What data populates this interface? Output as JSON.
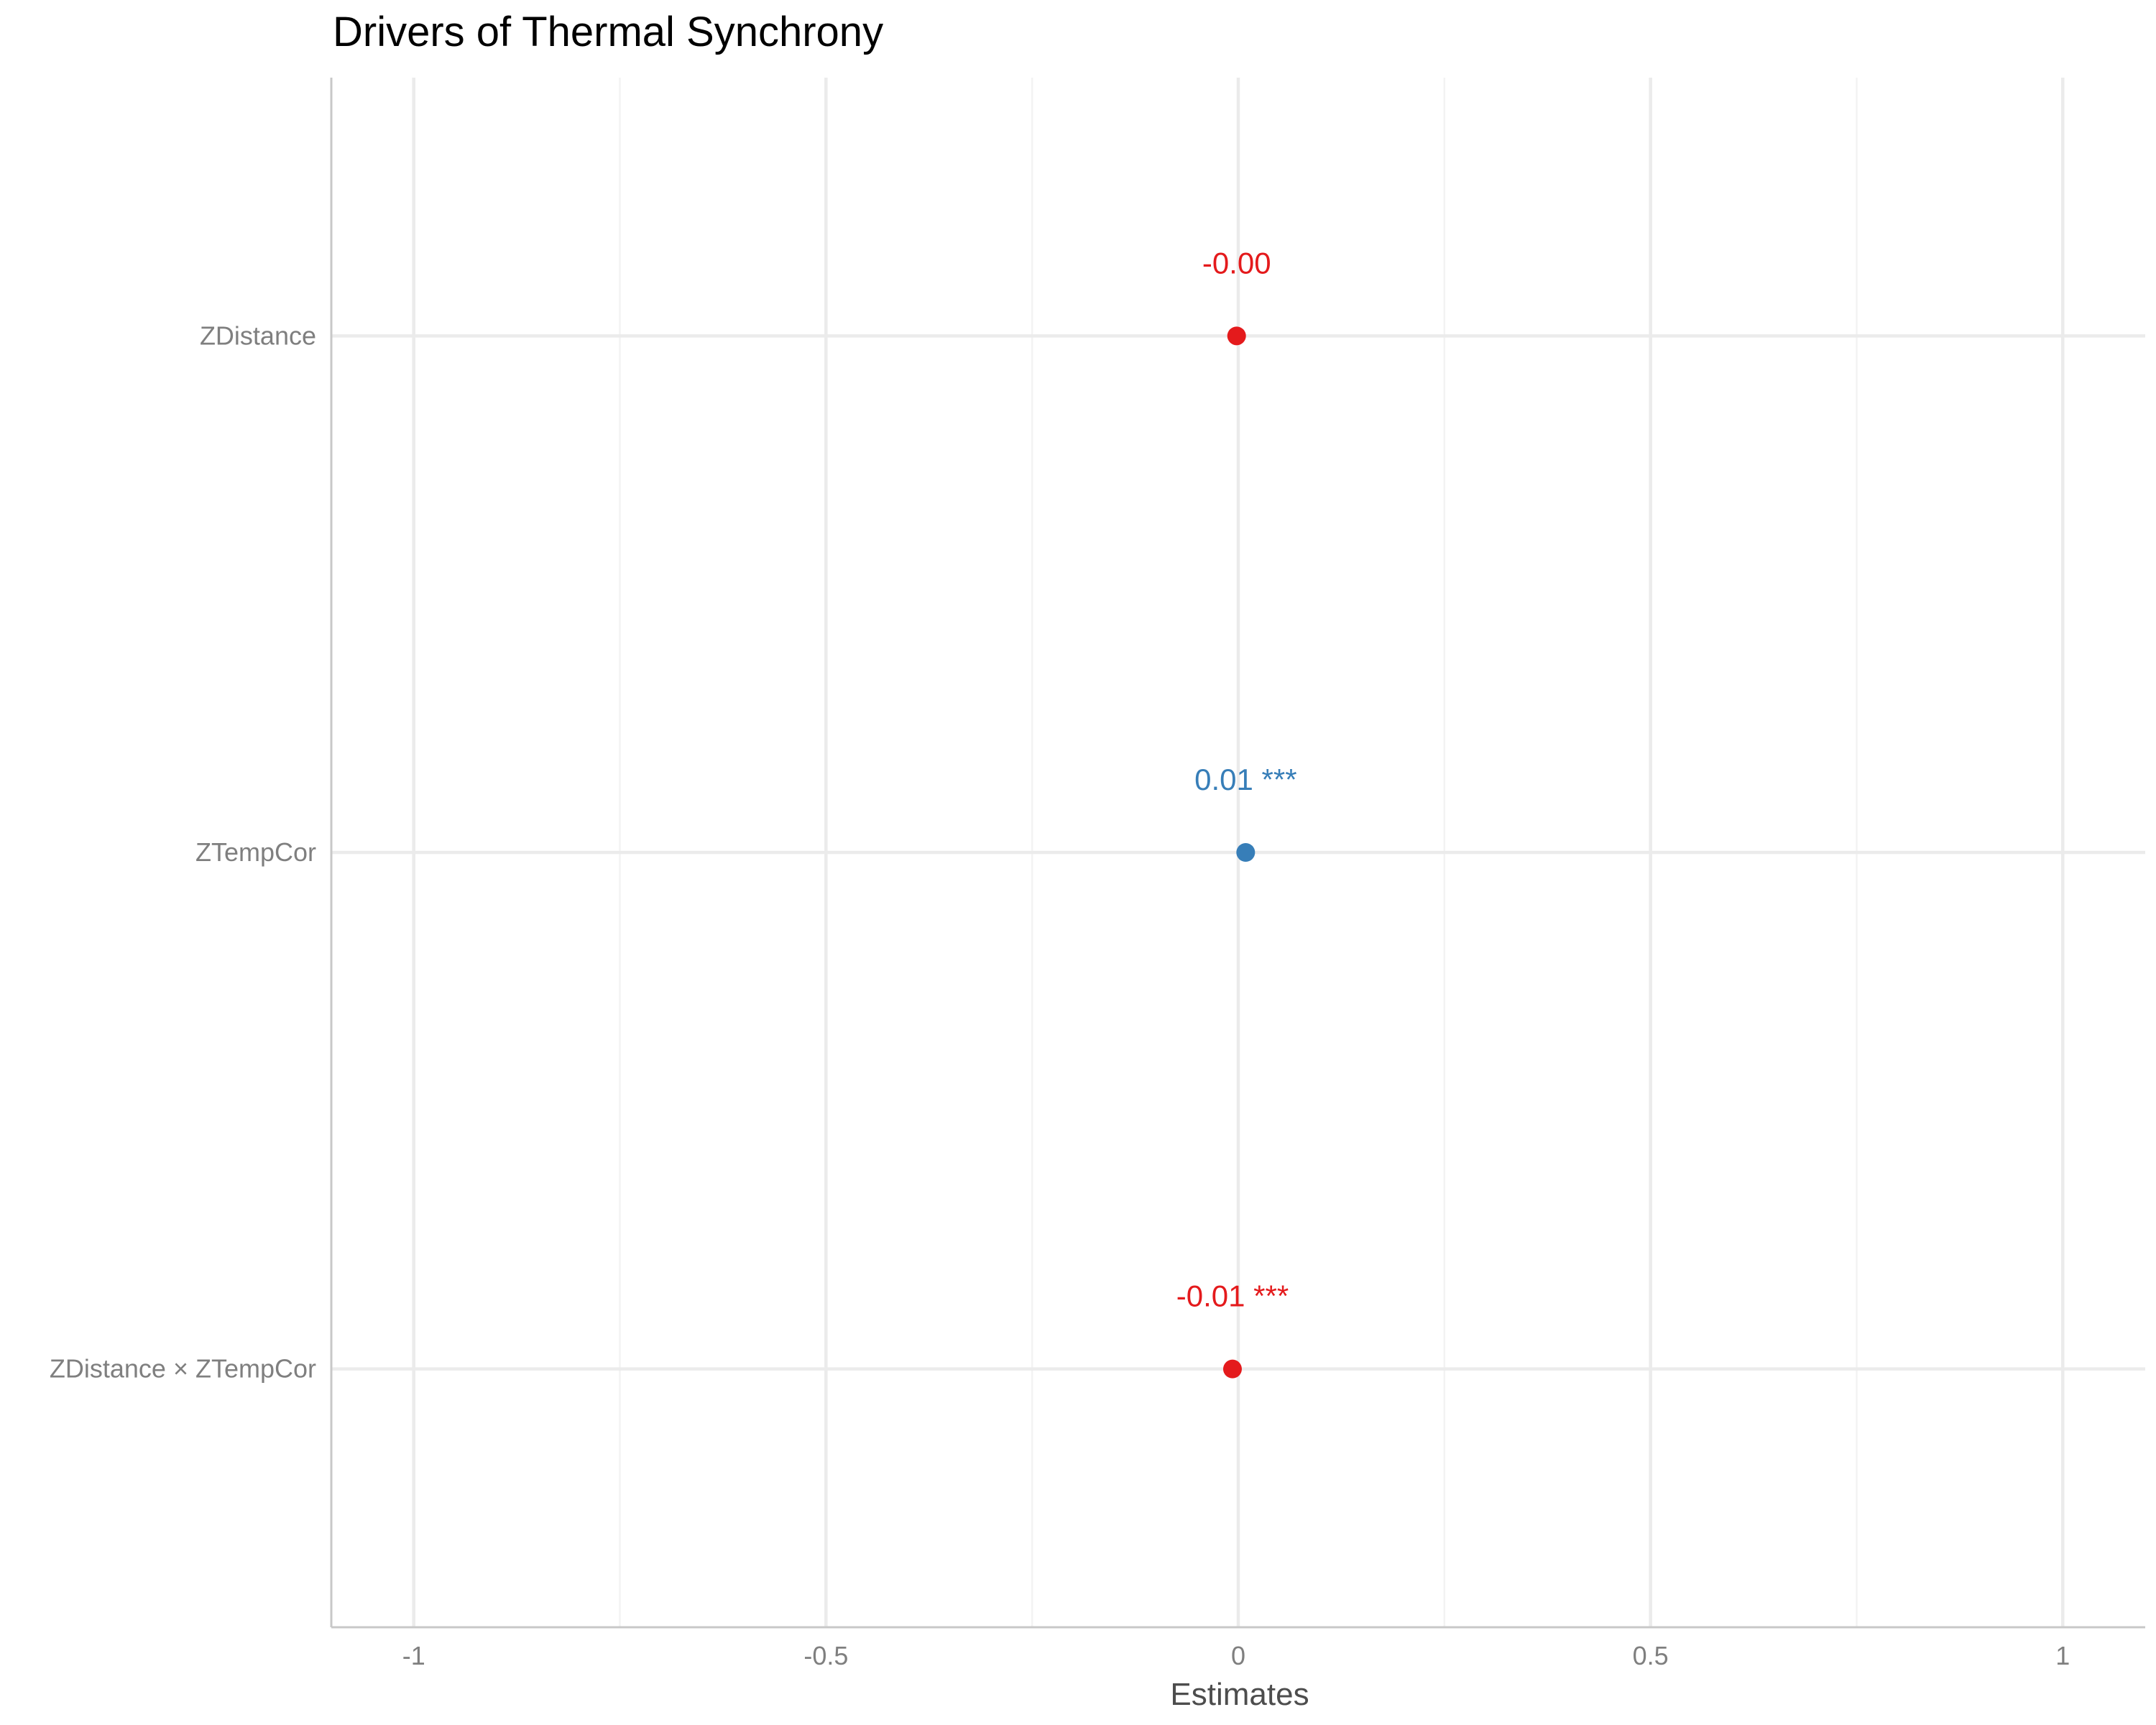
{
  "chart_data": {
    "type": "scatter",
    "title": "Drivers of Thermal Synchrony",
    "xlabel": "Estimates",
    "ylabel": "",
    "xlim": [
      -1.1,
      1.1
    ],
    "x_ticks": [
      -1,
      -0.5,
      0,
      0.5,
      1
    ],
    "x_tick_labels": [
      "-1",
      "-0.5",
      "0",
      "0.5",
      "1"
    ],
    "x_minor_ticks": [
      -0.75,
      -0.25,
      0.25,
      0.75
    ],
    "grid": true,
    "legend": "none",
    "categories": [
      "ZDistance",
      "ZTempCor",
      "ZDistance × ZTempCor"
    ],
    "points": [
      {
        "term": "ZDistance",
        "estimate": -0.002,
        "label": "-0.00",
        "color": "#e41a1c"
      },
      {
        "term": "ZTempCor",
        "estimate": 0.009,
        "label": "0.01 ***",
        "color": "#377eb8"
      },
      {
        "term": "ZDistance × ZTempCor",
        "estimate": -0.007,
        "label": "-0.01 ***",
        "color": "#e41a1c"
      }
    ]
  }
}
